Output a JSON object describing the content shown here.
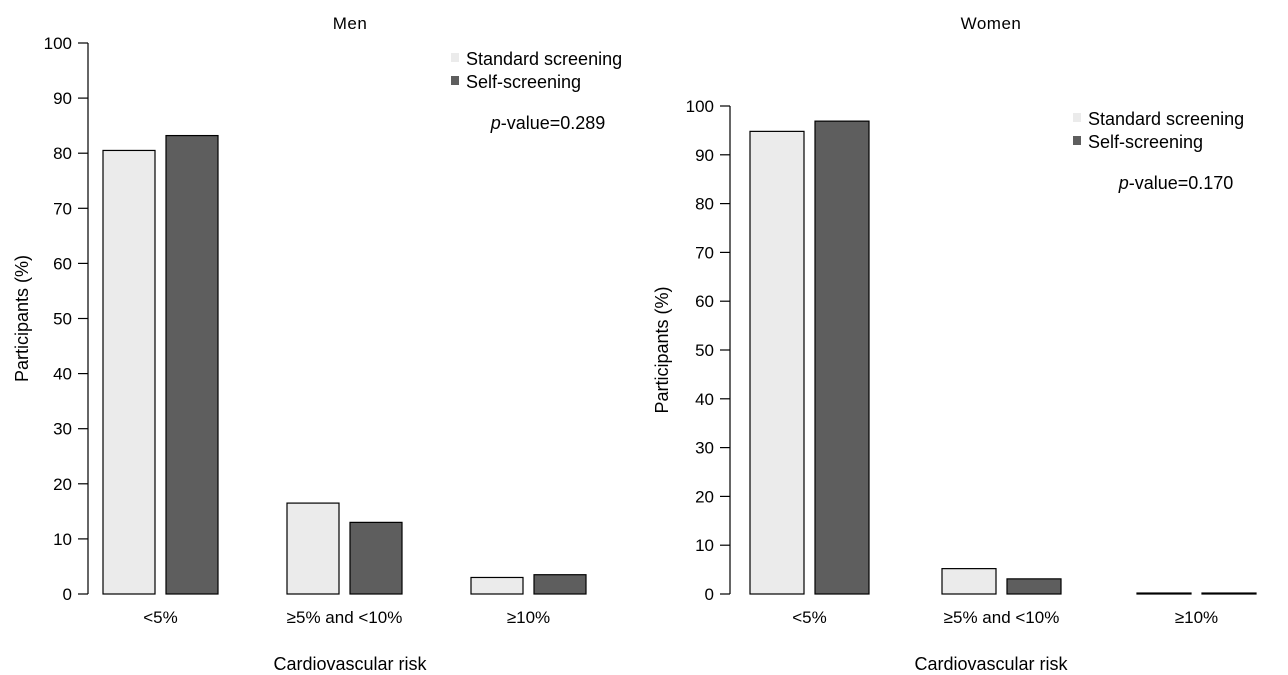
{
  "chart_data": [
    {
      "type": "bar",
      "title": "Men",
      "xlabel": "Cardiovascular risk",
      "ylabel": "Participants (%)",
      "ylim": [
        0,
        100
      ],
      "yticks": [
        0,
        10,
        20,
        30,
        40,
        50,
        60,
        70,
        80,
        90,
        100
      ],
      "categories": [
        "<5%",
        "≥5% and <10%",
        "≥10%"
      ],
      "series": [
        {
          "name": "Standard screening",
          "color": "#ebebeb",
          "values": [
            80.5,
            16.5,
            3.0
          ]
        },
        {
          "name": "Self-screening",
          "color": "#5e5e5e",
          "values": [
            83.2,
            13.0,
            3.5
          ]
        }
      ],
      "annotation": {
        "italic": "p",
        "text": "-value=0.289"
      },
      "legend_position": "top-right",
      "grid": false
    },
    {
      "type": "bar",
      "title": "Women",
      "xlabel": "Cardiovascular risk",
      "ylabel": "Participants (%)",
      "ylim": [
        0,
        100
      ],
      "yticks": [
        0,
        10,
        20,
        30,
        40,
        50,
        60,
        70,
        80,
        90,
        100
      ],
      "categories": [
        "<5%",
        "≥5% and <10%",
        "≥10%"
      ],
      "series": [
        {
          "name": "Standard screening",
          "color": "#ebebeb",
          "values": [
            94.8,
            5.2,
            0.2
          ]
        },
        {
          "name": "Self-screening",
          "color": "#5e5e5e",
          "values": [
            96.9,
            3.1,
            0.2
          ]
        }
      ],
      "annotation": {
        "italic": "p",
        "text": "-value=0.170"
      },
      "legend_position": "top-right",
      "grid": false
    }
  ]
}
